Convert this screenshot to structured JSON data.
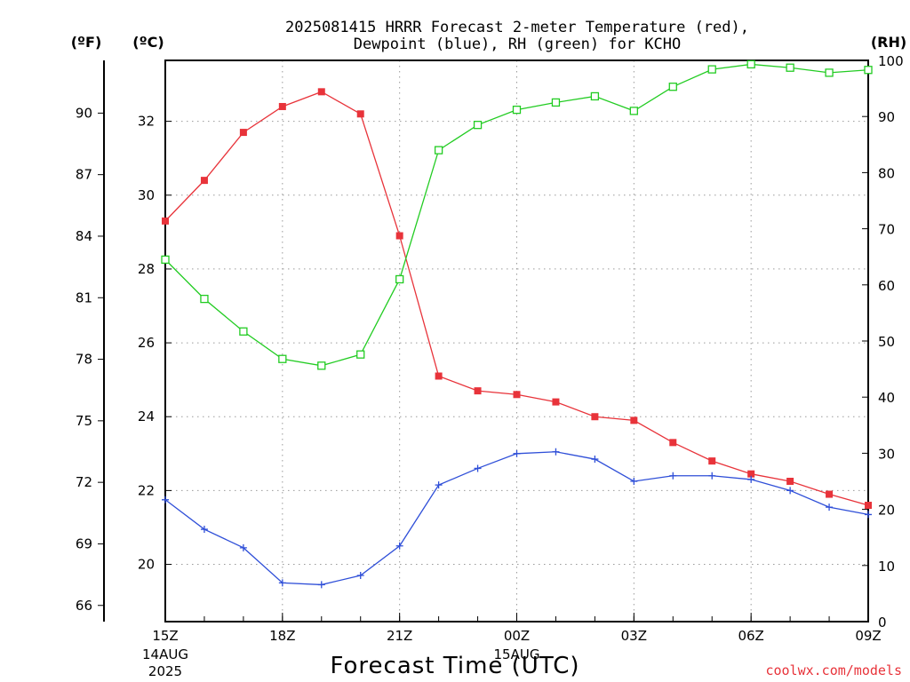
{
  "title_lines": [
    "2025081415 HRRR Forecast 2-meter Temperature (red),",
    "Dewpoint (blue), RH (green) for KCHO"
  ],
  "units": {
    "fahrenheit": "(ºF)",
    "celsius": "(ºC)",
    "rh": "(RH)"
  },
  "xlabel": "Forecast Time (UTC)",
  "credit": "coolwx.com/models",
  "colors": {
    "temperature": "#e8333a",
    "dewpoint": "#2f4fd8",
    "rh": "#22cc22",
    "grid": "#9a9a9a"
  },
  "chart_data": {
    "type": "line",
    "x": [
      "15Z",
      "16Z",
      "17Z",
      "18Z",
      "19Z",
      "20Z",
      "21Z",
      "22Z",
      "23Z",
      "00Z",
      "01Z",
      "02Z",
      "03Z",
      "04Z",
      "05Z",
      "06Z",
      "07Z",
      "08Z",
      "09Z"
    ],
    "x_tick_labels": [
      {
        "index": 0,
        "label": "15Z",
        "sub": [
          "14AUG",
          "2025"
        ]
      },
      {
        "index": 3,
        "label": "18Z",
        "sub": []
      },
      {
        "index": 6,
        "label": "21Z",
        "sub": []
      },
      {
        "index": 9,
        "label": "00Z",
        "sub": [
          "15AUG"
        ]
      },
      {
        "index": 12,
        "label": "03Z",
        "sub": []
      },
      {
        "index": 15,
        "label": "06Z",
        "sub": []
      },
      {
        "index": 18,
        "label": "09Z",
        "sub": []
      }
    ],
    "y_celsius": {
      "range": [
        18.45,
        33.65
      ],
      "ticks": [
        20,
        22,
        24,
        26,
        28,
        30,
        32
      ]
    },
    "y_fahrenheit": {
      "ticks": [
        66,
        69,
        72,
        75,
        78,
        81,
        84,
        87,
        90
      ]
    },
    "y_rh": {
      "range": [
        0,
        100
      ],
      "ticks": [
        0,
        10,
        20,
        30,
        40,
        50,
        60,
        70,
        80,
        90,
        100
      ]
    },
    "grid": true,
    "series": [
      {
        "name": "Temperature",
        "axis": "celsius",
        "marker": "filled-square",
        "color": "#e8333a",
        "values": [
          29.3,
          30.4,
          31.7,
          32.4,
          32.8,
          32.2,
          28.9,
          25.1,
          24.7,
          24.6,
          24.4,
          24.0,
          23.9,
          23.3,
          22.8,
          22.45,
          22.25,
          21.9,
          21.6
        ]
      },
      {
        "name": "Dewpoint",
        "axis": "celsius",
        "marker": "plus",
        "color": "#2f4fd8",
        "values": [
          21.75,
          20.95,
          20.45,
          19.5,
          19.45,
          19.7,
          20.5,
          22.15,
          22.6,
          23.0,
          23.05,
          22.85,
          22.25,
          22.4,
          22.4,
          22.3,
          22.0,
          21.55,
          21.35
        ]
      },
      {
        "name": "RH",
        "axis": "rh",
        "marker": "open-square",
        "color": "#22cc22",
        "values": [
          64.5,
          57.5,
          51.7,
          46.8,
          45.6,
          47.6,
          61.0,
          84.0,
          88.5,
          91.2,
          92.5,
          93.6,
          91.0,
          95.3,
          98.4,
          99.3,
          98.7,
          97.8,
          98.3
        ]
      }
    ]
  }
}
